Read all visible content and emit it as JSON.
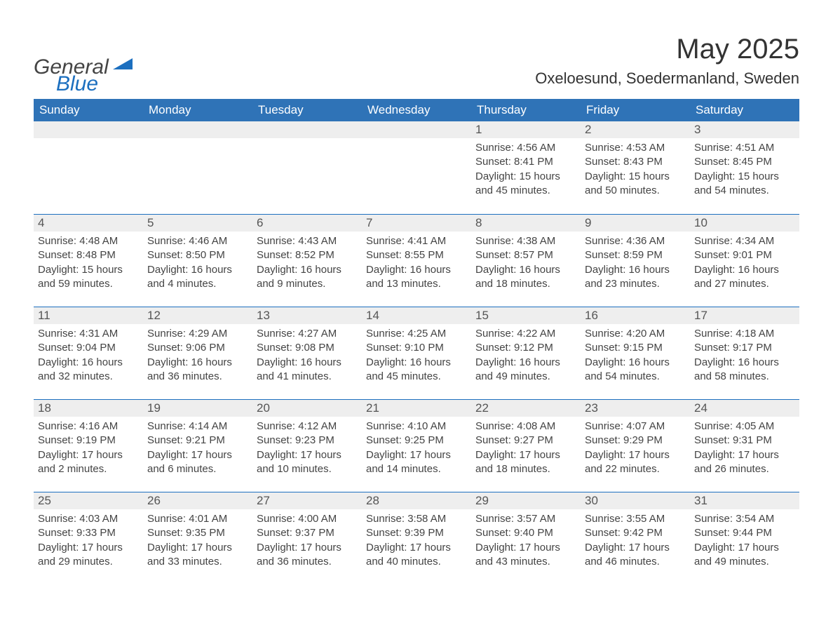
{
  "logo": {
    "text1": "General",
    "text2": "Blue"
  },
  "title": "May 2025",
  "location": "Oxeloesund, Soedermanland, Sweden",
  "colors": {
    "header_blue": "#2f73b7",
    "accent_blue": "#1c6fbf",
    "row_stripe": "#eeeeee",
    "page_bg": "#ffffff",
    "text_dark": "#333333"
  },
  "day_labels": [
    "Sunday",
    "Monday",
    "Tuesday",
    "Wednesday",
    "Thursday",
    "Friday",
    "Saturday"
  ],
  "weeks": [
    [
      null,
      null,
      null,
      null,
      {
        "n": "1",
        "sr": "Sunrise: 4:56 AM",
        "ss": "Sunset: 8:41 PM",
        "dl": "Daylight: 15 hours and 45 minutes."
      },
      {
        "n": "2",
        "sr": "Sunrise: 4:53 AM",
        "ss": "Sunset: 8:43 PM",
        "dl": "Daylight: 15 hours and 50 minutes."
      },
      {
        "n": "3",
        "sr": "Sunrise: 4:51 AM",
        "ss": "Sunset: 8:45 PM",
        "dl": "Daylight: 15 hours and 54 minutes."
      }
    ],
    [
      {
        "n": "4",
        "sr": "Sunrise: 4:48 AM",
        "ss": "Sunset: 8:48 PM",
        "dl": "Daylight: 15 hours and 59 minutes."
      },
      {
        "n": "5",
        "sr": "Sunrise: 4:46 AM",
        "ss": "Sunset: 8:50 PM",
        "dl": "Daylight: 16 hours and 4 minutes."
      },
      {
        "n": "6",
        "sr": "Sunrise: 4:43 AM",
        "ss": "Sunset: 8:52 PM",
        "dl": "Daylight: 16 hours and 9 minutes."
      },
      {
        "n": "7",
        "sr": "Sunrise: 4:41 AM",
        "ss": "Sunset: 8:55 PM",
        "dl": "Daylight: 16 hours and 13 minutes."
      },
      {
        "n": "8",
        "sr": "Sunrise: 4:38 AM",
        "ss": "Sunset: 8:57 PM",
        "dl": "Daylight: 16 hours and 18 minutes."
      },
      {
        "n": "9",
        "sr": "Sunrise: 4:36 AM",
        "ss": "Sunset: 8:59 PM",
        "dl": "Daylight: 16 hours and 23 minutes."
      },
      {
        "n": "10",
        "sr": "Sunrise: 4:34 AM",
        "ss": "Sunset: 9:01 PM",
        "dl": "Daylight: 16 hours and 27 minutes."
      }
    ],
    [
      {
        "n": "11",
        "sr": "Sunrise: 4:31 AM",
        "ss": "Sunset: 9:04 PM",
        "dl": "Daylight: 16 hours and 32 minutes."
      },
      {
        "n": "12",
        "sr": "Sunrise: 4:29 AM",
        "ss": "Sunset: 9:06 PM",
        "dl": "Daylight: 16 hours and 36 minutes."
      },
      {
        "n": "13",
        "sr": "Sunrise: 4:27 AM",
        "ss": "Sunset: 9:08 PM",
        "dl": "Daylight: 16 hours and 41 minutes."
      },
      {
        "n": "14",
        "sr": "Sunrise: 4:25 AM",
        "ss": "Sunset: 9:10 PM",
        "dl": "Daylight: 16 hours and 45 minutes."
      },
      {
        "n": "15",
        "sr": "Sunrise: 4:22 AM",
        "ss": "Sunset: 9:12 PM",
        "dl": "Daylight: 16 hours and 49 minutes."
      },
      {
        "n": "16",
        "sr": "Sunrise: 4:20 AM",
        "ss": "Sunset: 9:15 PM",
        "dl": "Daylight: 16 hours and 54 minutes."
      },
      {
        "n": "17",
        "sr": "Sunrise: 4:18 AM",
        "ss": "Sunset: 9:17 PM",
        "dl": "Daylight: 16 hours and 58 minutes."
      }
    ],
    [
      {
        "n": "18",
        "sr": "Sunrise: 4:16 AM",
        "ss": "Sunset: 9:19 PM",
        "dl": "Daylight: 17 hours and 2 minutes."
      },
      {
        "n": "19",
        "sr": "Sunrise: 4:14 AM",
        "ss": "Sunset: 9:21 PM",
        "dl": "Daylight: 17 hours and 6 minutes."
      },
      {
        "n": "20",
        "sr": "Sunrise: 4:12 AM",
        "ss": "Sunset: 9:23 PM",
        "dl": "Daylight: 17 hours and 10 minutes."
      },
      {
        "n": "21",
        "sr": "Sunrise: 4:10 AM",
        "ss": "Sunset: 9:25 PM",
        "dl": "Daylight: 17 hours and 14 minutes."
      },
      {
        "n": "22",
        "sr": "Sunrise: 4:08 AM",
        "ss": "Sunset: 9:27 PM",
        "dl": "Daylight: 17 hours and 18 minutes."
      },
      {
        "n": "23",
        "sr": "Sunrise: 4:07 AM",
        "ss": "Sunset: 9:29 PM",
        "dl": "Daylight: 17 hours and 22 minutes."
      },
      {
        "n": "24",
        "sr": "Sunrise: 4:05 AM",
        "ss": "Sunset: 9:31 PM",
        "dl": "Daylight: 17 hours and 26 minutes."
      }
    ],
    [
      {
        "n": "25",
        "sr": "Sunrise: 4:03 AM",
        "ss": "Sunset: 9:33 PM",
        "dl": "Daylight: 17 hours and 29 minutes."
      },
      {
        "n": "26",
        "sr": "Sunrise: 4:01 AM",
        "ss": "Sunset: 9:35 PM",
        "dl": "Daylight: 17 hours and 33 minutes."
      },
      {
        "n": "27",
        "sr": "Sunrise: 4:00 AM",
        "ss": "Sunset: 9:37 PM",
        "dl": "Daylight: 17 hours and 36 minutes."
      },
      {
        "n": "28",
        "sr": "Sunrise: 3:58 AM",
        "ss": "Sunset: 9:39 PM",
        "dl": "Daylight: 17 hours and 40 minutes."
      },
      {
        "n": "29",
        "sr": "Sunrise: 3:57 AM",
        "ss": "Sunset: 9:40 PM",
        "dl": "Daylight: 17 hours and 43 minutes."
      },
      {
        "n": "30",
        "sr": "Sunrise: 3:55 AM",
        "ss": "Sunset: 9:42 PM",
        "dl": "Daylight: 17 hours and 46 minutes."
      },
      {
        "n": "31",
        "sr": "Sunrise: 3:54 AM",
        "ss": "Sunset: 9:44 PM",
        "dl": "Daylight: 17 hours and 49 minutes."
      }
    ]
  ]
}
